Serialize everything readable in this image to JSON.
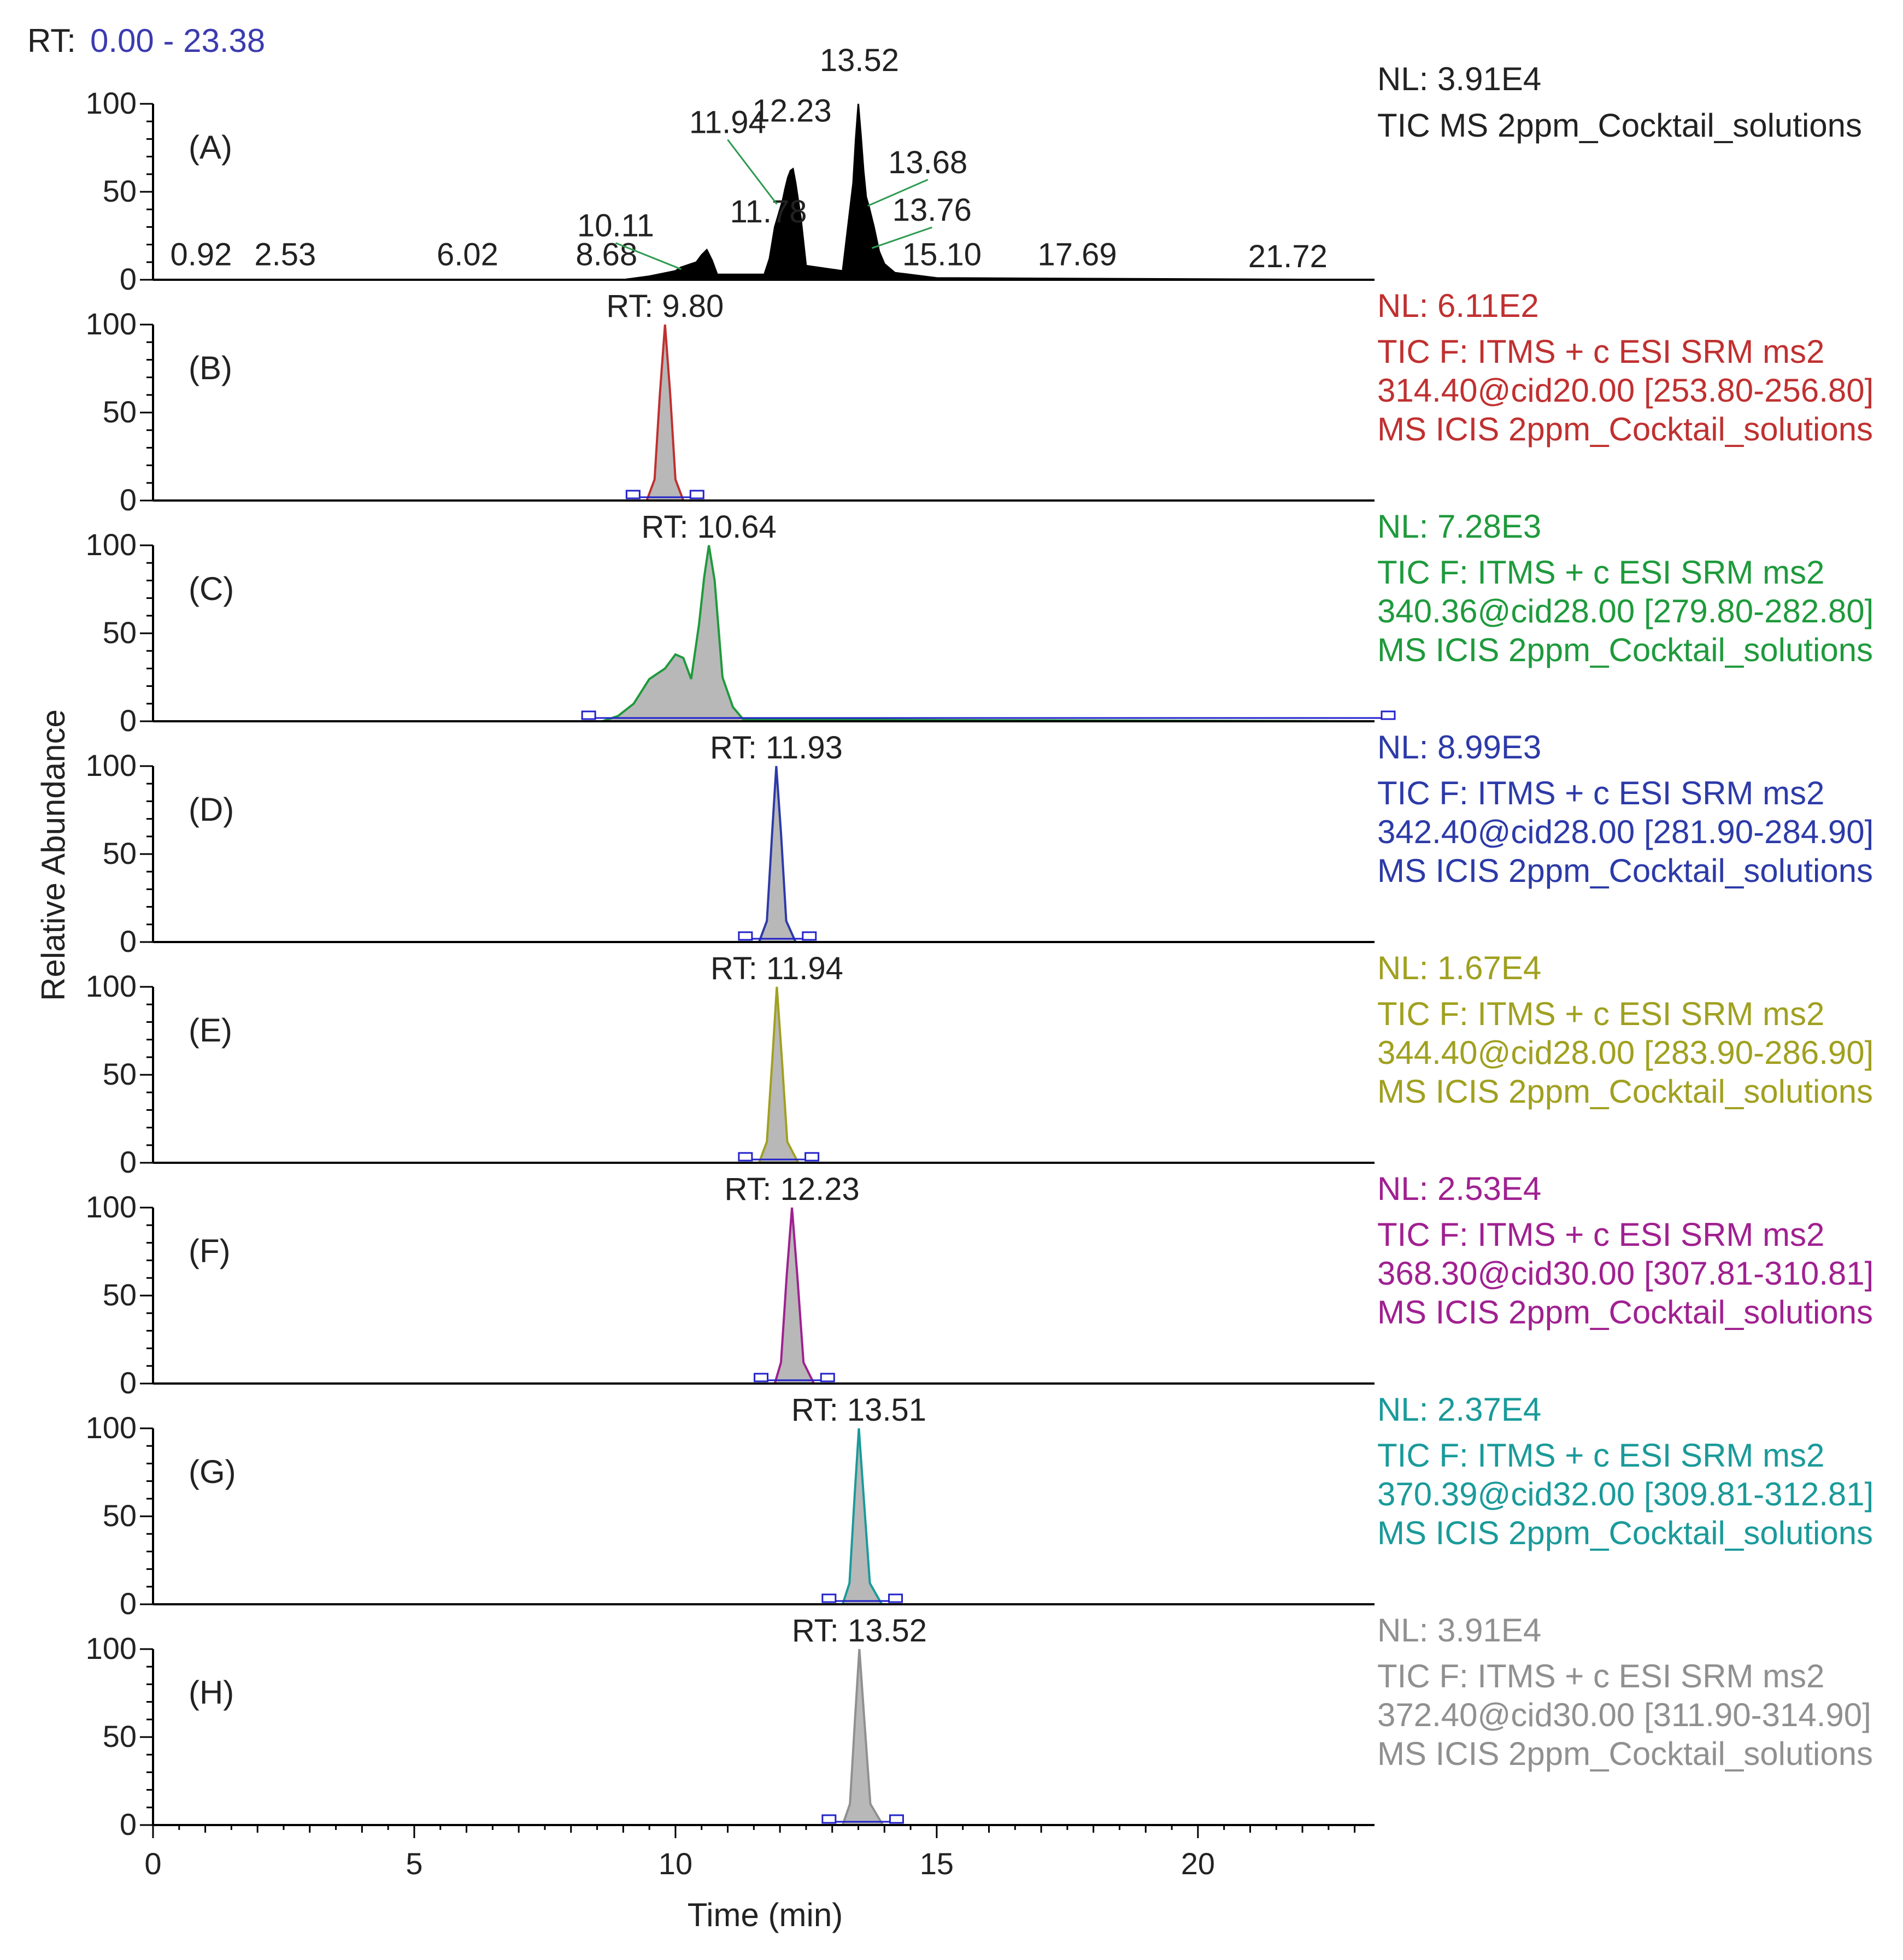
{
  "chart_data": {
    "type": "line",
    "rt_range_label": "RT:",
    "rt_range_value": "0.00 - 23.38",
    "xlabel": "Time (min)",
    "ylabel": "Relative Abundance",
    "xlim": [
      0,
      23.38
    ],
    "x_ticks": [
      "0",
      "5",
      "10",
      "15",
      "20"
    ],
    "y_ticks": [
      "0",
      "50",
      "100"
    ],
    "ylim": [
      0,
      100
    ],
    "colors": {
      "text": "#222222",
      "rt": "#3b3bb0",
      "fill": "#b8b8b8",
      "baseline": "#2222cc"
    },
    "panels": [
      {
        "label": "(A)",
        "color": "#000000",
        "nl": "NL: 3.91E4",
        "info": [
          "TIC  MS 2ppm_Cocktail_solutions"
        ],
        "peak_labels": [
          {
            "text": "0.92",
            "x": 0.92,
            "y": 2
          },
          {
            "text": "2.53",
            "x": 2.53,
            "y": 2
          },
          {
            "text": "6.02",
            "x": 6.02,
            "y": 2
          },
          {
            "text": "8.68",
            "x": 8.68,
            "y": 2
          },
          {
            "text": "10.11",
            "x": 10.11,
            "y": 6
          },
          {
            "text": "11.78",
            "x": 11.78,
            "y": 14
          },
          {
            "text": "11.94",
            "x": 11.94,
            "y": 43
          },
          {
            "text": "12.23",
            "x": 12.23,
            "y": 65
          },
          {
            "text": "13.52",
            "x": 13.52,
            "y": 100
          },
          {
            "text": "13.68",
            "x": 13.68,
            "y": 42
          },
          {
            "text": "13.76",
            "x": 13.76,
            "y": 18
          },
          {
            "text": "15.10",
            "x": 15.1,
            "y": 2
          },
          {
            "text": "17.69",
            "x": 17.69,
            "y": 2
          },
          {
            "text": "21.72",
            "x": 21.72,
            "y": 1
          }
        ],
        "series": {
          "name": "",
          "x": [
            9.0,
            9.5,
            10.0,
            10.1,
            10.4,
            10.5,
            10.6,
            10.7,
            10.8,
            11.7,
            11.8,
            11.9,
            11.95,
            12.0,
            12.05,
            12.1,
            12.15,
            12.2,
            12.25,
            12.3,
            12.4,
            12.5,
            13.2,
            13.3,
            13.4,
            13.45,
            13.5,
            13.55,
            13.6,
            13.65,
            13.7,
            13.8,
            13.9,
            14.0,
            14.2,
            15.0,
            23.38
          ],
          "y": [
            0,
            2,
            5,
            7,
            10,
            14,
            17,
            11,
            3,
            3,
            12,
            30,
            35,
            40,
            45,
            52,
            58,
            62,
            63,
            55,
            35,
            8,
            5,
            30,
            55,
            80,
            100,
            82,
            62,
            47,
            42,
            30,
            16,
            9,
            4,
            1,
            0
          ]
        }
      },
      {
        "label": "(B)",
        "color": "#c03030",
        "nl": "NL: 6.11E2",
        "info": [
          "TIC F: ITMS + c ESI SRM ms2",
          "314.40@cid20.00 [253.80-256.80]",
          "MS  ICIS 2ppm_Cocktail_solutions"
        ],
        "rt_label": "RT: 9.80",
        "peak": {
          "rt": 9.8
        },
        "series": {
          "name": "",
          "x": [
            0,
            9.45,
            9.6,
            9.7,
            9.8,
            9.9,
            10.0,
            10.15,
            23.38
          ],
          "y": [
            0,
            0,
            12,
            60,
            100,
            60,
            12,
            0,
            0
          ]
        }
      },
      {
        "label": "(C)",
        "color": "#1e9a3c",
        "nl": "NL: 7.28E3",
        "info": [
          "TIC F: ITMS + c ESI SRM ms2",
          "340.36@cid28.00 [279.80-282.80]",
          "MS  ICIS 2ppm_Cocktail_solutions"
        ],
        "rt_label": "RT: 10.64",
        "peak": {
          "rt": 10.64
        },
        "series": {
          "name": "",
          "x": [
            0,
            8.6,
            8.9,
            9.2,
            9.5,
            9.8,
            10.0,
            10.15,
            10.3,
            10.45,
            10.55,
            10.64,
            10.75,
            10.9,
            11.1,
            11.3,
            23.38
          ],
          "y": [
            0,
            0,
            3,
            10,
            24,
            30,
            38,
            36,
            24,
            55,
            82,
            100,
            80,
            25,
            8,
            1,
            0
          ]
        }
      },
      {
        "label": "(D)",
        "color": "#2c3aa8",
        "nl": "NL: 8.99E3",
        "info": [
          "TIC F: ITMS + c ESI SRM ms2",
          "342.40@cid28.00 [281.90-284.90]",
          "MS  ICIS 2ppm_Cocktail_solutions"
        ],
        "rt_label": "RT: 11.93",
        "peak": {
          "rt": 11.93
        },
        "series": {
          "name": "",
          "x": [
            0,
            11.6,
            11.75,
            11.85,
            11.93,
            12.02,
            12.12,
            12.3,
            23.38
          ],
          "y": [
            0,
            0,
            12,
            62,
            100,
            62,
            12,
            0,
            0
          ]
        }
      },
      {
        "label": "(E)",
        "color": "#a0a020",
        "nl": "NL: 1.67E4",
        "info": [
          "TIC F: ITMS + c ESI SRM ms2",
          "344.40@cid28.00 [283.90-286.90]",
          "MS  ICIS 2ppm_Cocktail_solutions"
        ],
        "rt_label": "RT: 11.94",
        "peak": {
          "rt": 11.94
        },
        "series": {
          "name": "",
          "x": [
            0,
            11.6,
            11.75,
            11.86,
            11.94,
            12.03,
            12.14,
            12.35,
            23.38
          ],
          "y": [
            0,
            0,
            12,
            62,
            100,
            62,
            12,
            0,
            0
          ]
        }
      },
      {
        "label": "(F)",
        "color": "#a02090",
        "nl": "NL: 2.53E4",
        "info": [
          "TIC F: ITMS + c ESI SRM ms2",
          "368.30@cid30.00 [307.81-310.81]",
          "MS  ICIS 2ppm_Cocktail_solutions"
        ],
        "rt_label": "RT: 12.23",
        "peak": {
          "rt": 12.23
        },
        "series": {
          "name": "",
          "x": [
            0,
            11.9,
            12.02,
            12.13,
            12.23,
            12.33,
            12.45,
            12.65,
            23.38
          ],
          "y": [
            0,
            0,
            12,
            62,
            100,
            62,
            12,
            0,
            0
          ]
        }
      },
      {
        "label": "(G)",
        "color": "#1a9a9a",
        "nl": "NL: 2.37E4",
        "info": [
          "TIC F: ITMS + c ESI SRM ms2",
          "370.39@cid32.00 [309.81-312.81]",
          "MS  ICIS 2ppm_Cocktail_solutions"
        ],
        "rt_label": "RT: 13.51",
        "peak": {
          "rt": 13.51
        },
        "series": {
          "name": "",
          "x": [
            0,
            13.2,
            13.33,
            13.43,
            13.51,
            13.6,
            13.72,
            13.95,
            23.38
          ],
          "y": [
            0,
            0,
            12,
            62,
            100,
            62,
            12,
            0,
            0
          ]
        }
      },
      {
        "label": "(H)",
        "color": "#909090",
        "nl": "NL: 3.91E4",
        "info": [
          "TIC F: ITMS + c ESI SRM ms2",
          "372.40@cid30.00 [311.90-314.90]",
          "MS  ICIS 2ppm_Cocktail_solutions"
        ],
        "rt_label": "RT: 13.52",
        "peak": {
          "rt": 13.52
        },
        "series": {
          "name": "",
          "x": [
            0,
            13.2,
            13.34,
            13.44,
            13.52,
            13.61,
            13.73,
            13.97,
            23.38
          ],
          "y": [
            0,
            0,
            12,
            62,
            100,
            62,
            12,
            0,
            0
          ]
        }
      }
    ]
  }
}
